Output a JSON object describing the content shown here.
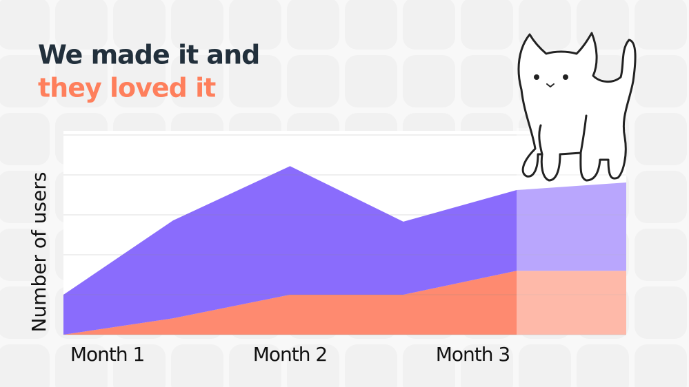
{
  "chart_data": {
    "type": "stacked_area",
    "title": "We made it and",
    "subtitle": "they loved it",
    "ylabel": "Number of users",
    "x": [
      0.76,
      1.36,
      2.0,
      2.62,
      3.24,
      3.84
    ],
    "xlim": [
      0.76,
      3.84
    ],
    "xticks": [
      {
        "value": 1,
        "label": "Month 1"
      },
      {
        "value": 2,
        "label": "Month 2"
      },
      {
        "value": 3,
        "label": "Month 3"
      }
    ],
    "ylim": [
      0,
      5
    ],
    "yticks": [
      0,
      1,
      2,
      3,
      4,
      5
    ],
    "grid": true,
    "shaded_from": 3.24,
    "series": [
      {
        "color": "#fe8a70",
        "values": [
          0,
          0.41,
          1.0,
          1.0,
          1.6,
          1.6
        ]
      },
      {
        "color": "#8a6cfc",
        "values": [
          1.0,
          2.45,
          3.22,
          1.83,
          2.02,
          2.21
        ]
      }
    ]
  }
}
